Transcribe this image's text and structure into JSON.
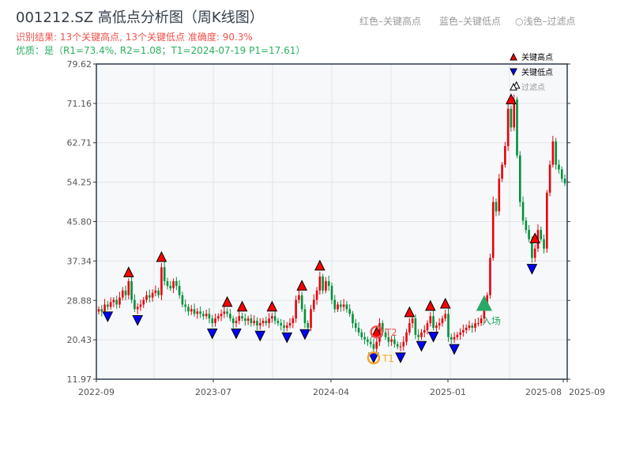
{
  "header": {
    "title": "001212.SZ 高低点分析图（周K线图）",
    "result": "识别结果: 13个关键高点, 13个关键低点  准确度: 90.3%",
    "quality": "优质：是（R1=73.4%, R2=1.08；T1=2024-07-19 P1=17.61）"
  },
  "top_legend": [
    "红色–关键高点",
    "蓝色–关键低点",
    "○浅色–过滤点"
  ],
  "colors": {
    "up": "#e8000b",
    "down": "#00913a",
    "high_marker": "#ff0000",
    "low_marker": "#0000ff",
    "entry": "#2aa866",
    "t1": "#f5a623",
    "t2": "#ef5350",
    "plot_bg": "#f7f8fa"
  },
  "chart_data": {
    "type": "candlestick",
    "title": "001212.SZ 高低点分析图（周K线图）",
    "ylim": [
      11.97,
      79.62
    ],
    "yticks": [
      "11.97",
      "20.43",
      "28.88",
      "37.34",
      "45.80",
      "54.25",
      "62.71",
      "71.16",
      "79.62"
    ],
    "xticks": [
      "2022-09",
      "2023-07",
      "2024-04",
      "2025-01",
      "2025-08",
      "2025-09"
    ],
    "grid": true,
    "legend": {
      "placement": "top-right",
      "entries": [
        "关键高点",
        "关键低点",
        "过滤点"
      ]
    },
    "weekly_close": [
      27,
      26.5,
      28,
      27.5,
      28.5,
      29,
      28,
      29.5,
      31,
      30,
      33,
      29,
      27,
      27.5,
      28,
      29,
      30,
      29.5,
      30.5,
      31,
      30,
      36,
      33,
      32,
      31.5,
      33,
      32,
      30,
      28,
      27.5,
      26.5,
      27,
      26,
      26.5,
      26,
      25.5,
      26,
      25,
      24,
      25,
      25.5,
      26,
      26.5,
      26,
      25,
      24,
      24.5,
      25.5,
      25,
      24.5,
      25,
      24,
      24.5,
      23.5,
      24,
      24.5,
      24,
      25,
      25.5,
      24.5,
      24,
      23.5,
      23,
      23.5,
      24,
      25,
      29,
      30,
      27,
      24,
      23,
      27,
      29,
      31,
      34,
      31,
      33,
      32,
      29,
      27,
      28,
      27.5,
      28,
      27,
      26,
      24,
      23,
      22,
      21,
      20.5,
      20,
      19.5,
      18.5,
      20,
      24,
      22,
      21,
      20,
      20.5,
      19.5,
      19,
      19,
      20,
      22,
      24,
      25,
      21.5,
      21,
      22,
      22.5,
      24,
      25.5,
      23,
      23.5,
      24,
      25,
      26,
      21,
      20.5,
      21,
      21.5,
      22,
      22.5,
      23,
      23.5,
      23,
      24,
      24,
      25,
      28,
      30,
      38,
      50,
      48,
      55,
      58,
      62,
      70,
      66,
      72,
      60,
      50,
      46,
      44,
      42,
      38,
      40,
      44,
      42,
      40,
      52,
      58,
      63,
      58,
      57,
      55,
      54
    ],
    "key_high_weeks": [
      10,
      21,
      43,
      48,
      58,
      68,
      74,
      93,
      104,
      111,
      116,
      138,
      146
    ],
    "key_low_weeks": [
      3,
      13,
      38,
      46,
      54,
      63,
      69,
      92,
      101,
      108,
      112,
      119,
      145
    ],
    "annotations": {
      "T1": {
        "label": "T1",
        "date": "2024-07-19",
        "price": 17.61
      },
      "T2": {
        "label": "T2"
      },
      "entry": {
        "label": "入场"
      }
    }
  }
}
